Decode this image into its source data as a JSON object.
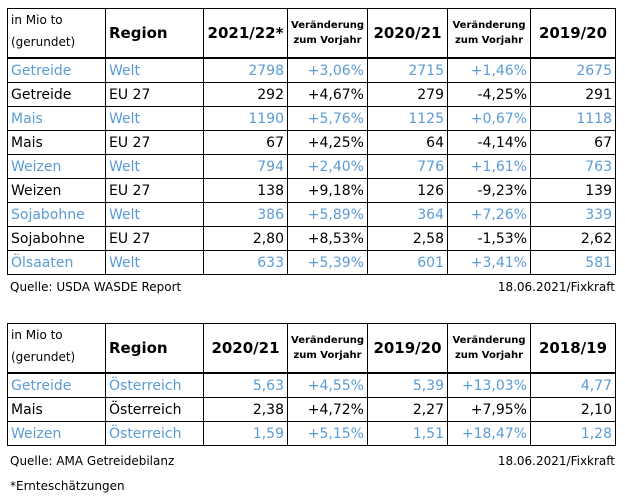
{
  "tables": [
    {
      "header": [
        "in Mio to\n(gerundet)",
        "Region",
        "2021/22*",
        "Veränderung\nzum Vorjahr",
        "2020/21",
        "Veränderung\nzum Vorjahr",
        "2019/20"
      ],
      "rows": [
        [
          "Getreide",
          "Welt",
          "2798",
          "+3,06%",
          "2715",
          "+1,46%",
          "2675"
        ],
        [
          "Getreide",
          "EU 27",
          "292",
          "+4,67%",
          "279",
          "-4,25%",
          "291"
        ],
        [
          "Mais",
          "Welt",
          "1190",
          "+5,76%",
          "1125",
          "+0,67%",
          "1118"
        ],
        [
          "Mais",
          "EU 27",
          "67",
          "+4,25%",
          "64",
          "-4,14%",
          "67"
        ],
        [
          "Weizen",
          "Welt",
          "794",
          "+2,40%",
          "776",
          "+1,61%",
          "763"
        ],
        [
          "Weizen",
          "EU 27",
          "138",
          "+9,18%",
          "126",
          "-9,23%",
          "139"
        ],
        [
          "Sojabohne",
          "Welt",
          "386",
          "+5,89%",
          "364",
          "+7,26%",
          "339"
        ],
        [
          "Sojabohne",
          "EU 27",
          "2,80",
          "+8,53%",
          "2,58",
          "-1,53%",
          "2,62"
        ],
        [
          "Ölsaaten",
          "Welt",
          "633",
          "+5,39%",
          "601",
          "+3,41%",
          "581"
        ]
      ],
      "source": "Quelle: USDA WASDE Report",
      "date": "18.06.2021/Fixkraft"
    },
    {
      "header": [
        "in Mio to\n(gerundet)",
        "Region",
        "2020/21",
        "Veränderung\nzum Vorjahr",
        "2019/20",
        "Veränderung\nzum Vorjahr",
        "2018/19"
      ],
      "rows": [
        [
          "Getreide",
          "Österreich",
          "5,63",
          "+4,55%",
          "5,39",
          "+13,03%",
          "4,77"
        ],
        [
          "Mais",
          "Österreich",
          "2,38",
          "+4,72%",
          "2,27",
          "+7,95%",
          "2,10"
        ],
        [
          "Weizen",
          "Österreich",
          "1,59",
          "+5,15%",
          "1,51",
          "+18,47%",
          "1,28"
        ]
      ],
      "source": "Quelle: AMA Getreidebilanz",
      "date": "18.06.2021/Fixkraft"
    }
  ],
  "footnote": "*Ernteschätzungen"
}
